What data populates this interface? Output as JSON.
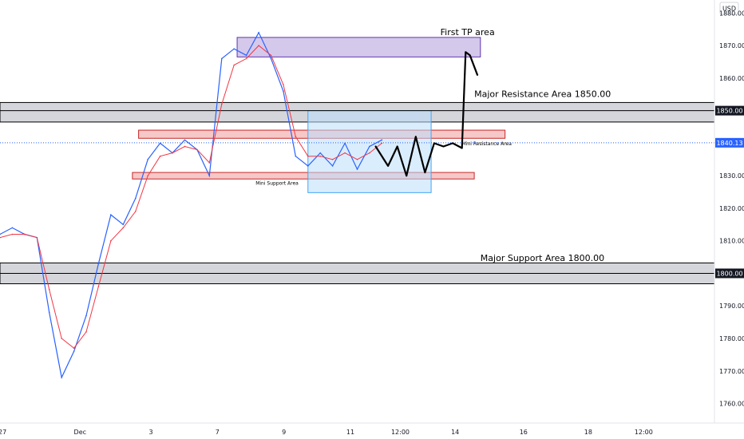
{
  "chart_data": {
    "type": "candlestick",
    "currency": "USD",
    "y_ticks": [
      1760,
      1770,
      1780,
      1790,
      1800,
      1810,
      1820,
      1830,
      1840,
      1850,
      1860,
      1870,
      1880
    ],
    "y_tick_labels": [
      "1760.00",
      "1770.00",
      "1780.00",
      "1790.00",
      "1800.00",
      "1810.00",
      "1820.00",
      "1830.00",
      "1840.00",
      "1850.00",
      "1860.00",
      "1870.00",
      "1880.00"
    ],
    "ylim": [
      1754,
      1884
    ],
    "x_ticks": [
      {
        "label": "27",
        "t": 0.4
      },
      {
        "label": "Dec",
        "t": 13
      },
      {
        "label": "3",
        "t": 24.5
      },
      {
        "label": "7",
        "t": 35.3
      },
      {
        "label": "9",
        "t": 46.1
      },
      {
        "label": "11",
        "t": 56.9
      },
      {
        "label": "12:00",
        "t": 65
      },
      {
        "label": "14",
        "t": 73.9
      },
      {
        "label": "16",
        "t": 85
      },
      {
        "label": "18",
        "t": 95.5
      },
      {
        "label": "12:00",
        "t": 104.5
      }
    ],
    "xlim": [
      0,
      116
    ],
    "last_price_label": "1840.13",
    "last_price": 1840.13,
    "price_line_colors": {
      "last": "#2962ff",
      "level": "#000000"
    },
    "level_labels": [
      {
        "label": "1850.00",
        "value": 1850.0
      },
      {
        "label": "1800.00",
        "value": 1800.0
      }
    ],
    "series": [
      {
        "name": "",
        "kind": "close",
        "color": "#2962ff",
        "t": [
          0,
          2,
          4,
          6,
          8,
          10,
          12,
          14,
          16,
          18,
          20,
          22,
          24,
          26,
          28,
          30,
          32,
          34,
          36,
          38,
          40,
          42,
          44,
          46,
          48,
          50,
          52,
          54,
          56,
          58,
          60,
          62
        ],
        "values": [
          1812,
          1814,
          1812,
          1811,
          1788,
          1768,
          1776,
          1787,
          1803,
          1818,
          1815,
          1823,
          1835,
          1840,
          1837,
          1841,
          1838,
          1830,
          1866,
          1869,
          1867,
          1874,
          1866,
          1856,
          1836,
          1833,
          1837,
          1833,
          1840,
          1832,
          1839,
          1841
        ]
      },
      {
        "name": "",
        "kind": "ema",
        "color": "#f23645",
        "t": [
          0,
          2,
          4,
          6,
          8,
          10,
          12,
          14,
          16,
          18,
          20,
          22,
          24,
          26,
          28,
          30,
          32,
          34,
          36,
          38,
          40,
          42,
          44,
          46,
          48,
          50,
          52,
          54,
          56,
          58,
          60,
          62
        ],
        "values": [
          1811,
          1812,
          1812,
          1811,
          1795,
          1780,
          1777,
          1782,
          1796,
          1810,
          1814,
          1819,
          1830,
          1836,
          1837,
          1839,
          1838,
          1834,
          1852,
          1864,
          1866,
          1870,
          1867,
          1858,
          1842,
          1836,
          1836,
          1835,
          1837,
          1835,
          1837,
          1840
        ]
      }
    ],
    "zones": [
      {
        "name": "major-resistance-zone",
        "from": 1846.5,
        "to": 1852.5,
        "x0": 0,
        "x1": 116,
        "fill": "#b2b5be",
        "stroke": "#000000"
      },
      {
        "name": "major-support-zone",
        "from": 1796.8,
        "to": 1803.2,
        "x0": 0,
        "x1": 116,
        "fill": "#b2b5be",
        "stroke": "#000000"
      },
      {
        "name": "first-tp-zone",
        "from": 1866.5,
        "to": 1872.5,
        "x0": 38.5,
        "x1": 78,
        "fill": "#b39ddb",
        "stroke": "#5e35b1"
      },
      {
        "name": "mini-resistance-zone",
        "from": 1841.5,
        "to": 1844,
        "x0": 22.5,
        "x1": 82,
        "fill": "#ef9a9a",
        "stroke": "#c62828"
      },
      {
        "name": "mini-support-zone",
        "from": 1829,
        "to": 1831,
        "x0": 21.5,
        "x1": 77,
        "fill": "#ef9a9a",
        "stroke": "#c62828"
      },
      {
        "name": "consolidation-zone",
        "from": 1824.8,
        "to": 1850,
        "x0": 50,
        "x1": 70,
        "fill": "#bbdefb",
        "stroke": "#42a5f5"
      }
    ],
    "annotations": [
      {
        "name": "first-tp-label",
        "text": "First TP area",
        "t": 71.5,
        "value": 1873.2,
        "size": 11
      },
      {
        "name": "major-resistance-label",
        "text": "Major Resistance Area 1850.00",
        "t": 77,
        "value": 1854.2,
        "size": 11
      },
      {
        "name": "mini-resistance-label",
        "text": "Mini Resistance Area",
        "t": 75,
        "value": 1839.3,
        "size": 6
      },
      {
        "name": "mini-support-label",
        "text": "Mini Support Area",
        "t": 41.5,
        "value": 1827.2,
        "size": 6
      },
      {
        "name": "major-support-label",
        "text": "Major Support Area 1800.00",
        "t": 78,
        "value": 1803.8,
        "size": 11
      }
    ],
    "forecast_path": {
      "t": [
        61,
        63,
        64.5,
        66,
        67.5,
        69,
        70.5,
        72,
        73.5,
        75,
        75.6,
        76.3,
        77.5
      ],
      "values": [
        1839,
        1833,
        1839,
        1830,
        1842,
        1831,
        1840,
        1839,
        1840,
        1838.5,
        1868,
        1867,
        1861
      ],
      "color": "#000000"
    },
    "grid": false,
    "legend": "none"
  }
}
